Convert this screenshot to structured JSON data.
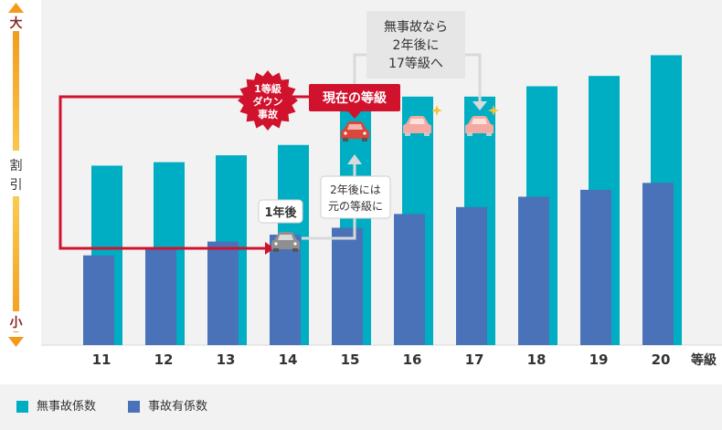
{
  "chart_data": {
    "type": "bar",
    "categories": [
      "11",
      "12",
      "13",
      "14",
      "15",
      "16",
      "17",
      "18",
      "19",
      "20"
    ],
    "series": [
      {
        "name": "無事故係数",
        "color": "#00aec3",
        "values": [
          52,
          53,
          55,
          58,
          70,
          72,
          72,
          75,
          78,
          84
        ]
      },
      {
        "name": "事故有係数",
        "color": "#4a72b9",
        "values": [
          26,
          28,
          30,
          32,
          34,
          38,
          40,
          43,
          45,
          47
        ]
      }
    ],
    "xlabel": "等級",
    "y_axis": {
      "top_label": "大",
      "middle_label": [
        "割",
        "引"
      ],
      "bottom_label": "小"
    },
    "ylim": [
      0,
      100
    ],
    "grid": false,
    "legend_position": "bottom",
    "annotations": {
      "accident_badge": [
        "1等級",
        "ダウン",
        "事故"
      ],
      "current_grade_label": "現在の等級",
      "no_accident_callout": [
        "無事故なら",
        "2年後に",
        "17等級へ"
      ],
      "one_year_label": "1年後",
      "two_year_callout": [
        "2年後には",
        "元の等級に"
      ]
    }
  },
  "colors": {
    "accent_red": "#d0122d",
    "no_accident_bar": "#00aec3",
    "accident_bar": "#4a72b9",
    "axis_gradient_top": "#f39a1a",
    "axis_gradient_mid": "#fbd15a",
    "callout_gray": "#e6e6e6"
  },
  "icons": [
    "car-icon",
    "car-faded-icon",
    "sparkle-icon",
    "arrow-up-icon",
    "arrow-down-icon"
  ]
}
